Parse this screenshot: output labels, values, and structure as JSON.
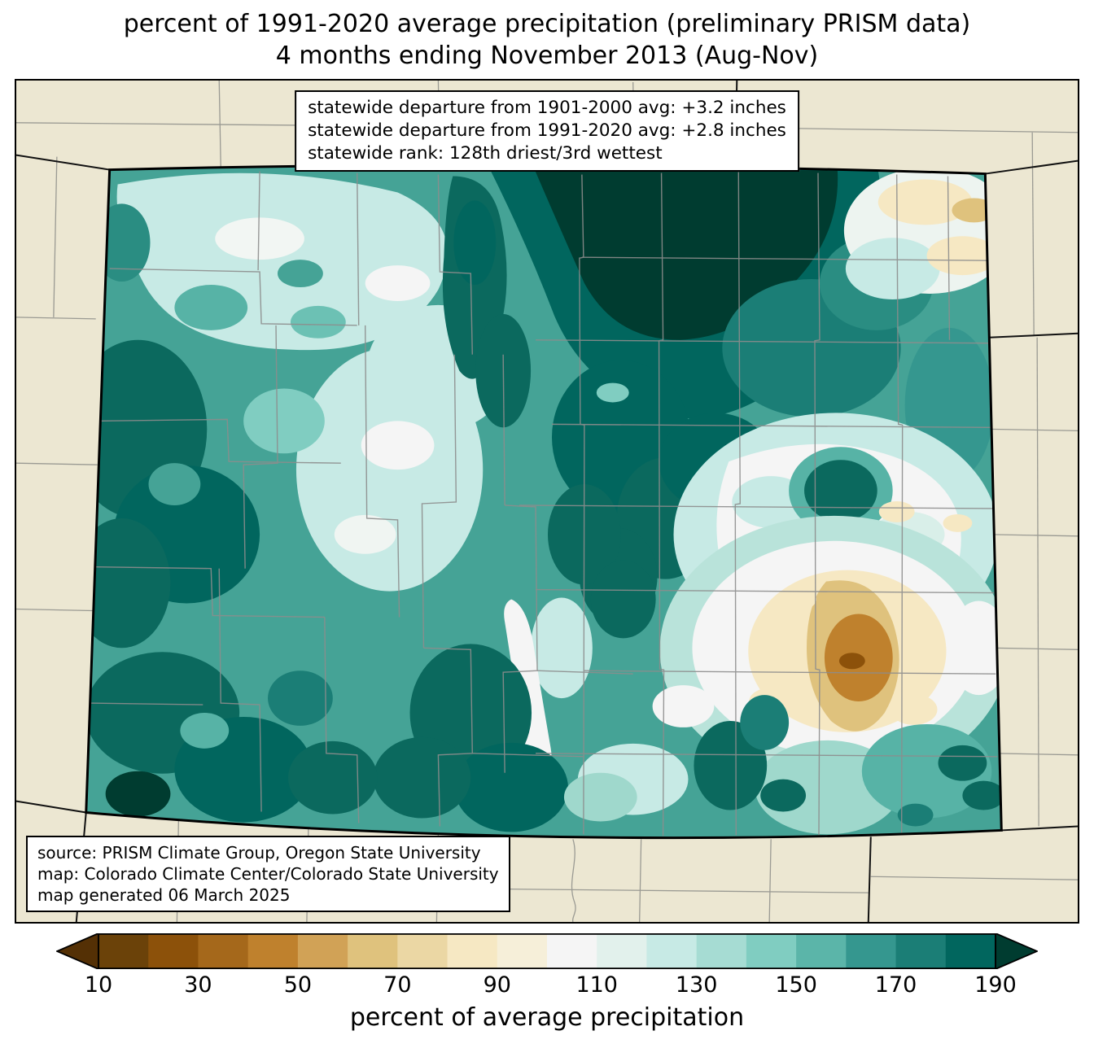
{
  "title": {
    "line1": "percent of 1991-2020 average precipitation (preliminary PRISM data)",
    "line2": "4 months ending November 2013 (Aug-Nov)"
  },
  "stats_box": {
    "line1": "statewide departure from 1901-2000 avg: +3.2 inches",
    "line2": "statewide departure from 1991-2020 avg: +2.8 inches",
    "line3": "statewide rank: 128th driest/3rd wettest"
  },
  "source_box": {
    "line1": "source: PRISM Climate Group, Oregon State University",
    "line2": "map: Colorado Climate Center/Colorado State University",
    "line3": "map generated 06 March 2025"
  },
  "colorbar": {
    "label": "percent of average precipitation",
    "ticks": [
      10,
      30,
      50,
      70,
      90,
      110,
      130,
      150,
      170,
      190
    ],
    "arrow_left_color": "#543005",
    "arrow_right_color": "#003c30",
    "segments": [
      "#6b4209",
      "#8c510a",
      "#a5681b",
      "#bf812d",
      "#d1a256",
      "#dfc27d",
      "#ebd7a4",
      "#f6e8c3",
      "#f6efd9",
      "#f5f5f5",
      "#e2f1ec",
      "#c7eae5",
      "#a6dcd3",
      "#80cdc1",
      "#5bb5a9",
      "#35978f",
      "#1b7e76",
      "#01665e"
    ]
  },
  "map": {
    "background_color": "#ece7d2",
    "state_border_color": "#000000",
    "county_line_color": "#8d8d8d",
    "palette": {
      "below_10": "#543005",
      "10_30": "#8c510a",
      "30_50": "#bf812d",
      "50_70": "#dfc27d",
      "70_90": "#f6e8c3",
      "90_110": "#f5f5f5",
      "110_130": "#c7eae5",
      "130_150": "#80cdc1",
      "150_170": "#35978f",
      "170_190": "#01665e",
      "above_190": "#003c30"
    }
  }
}
